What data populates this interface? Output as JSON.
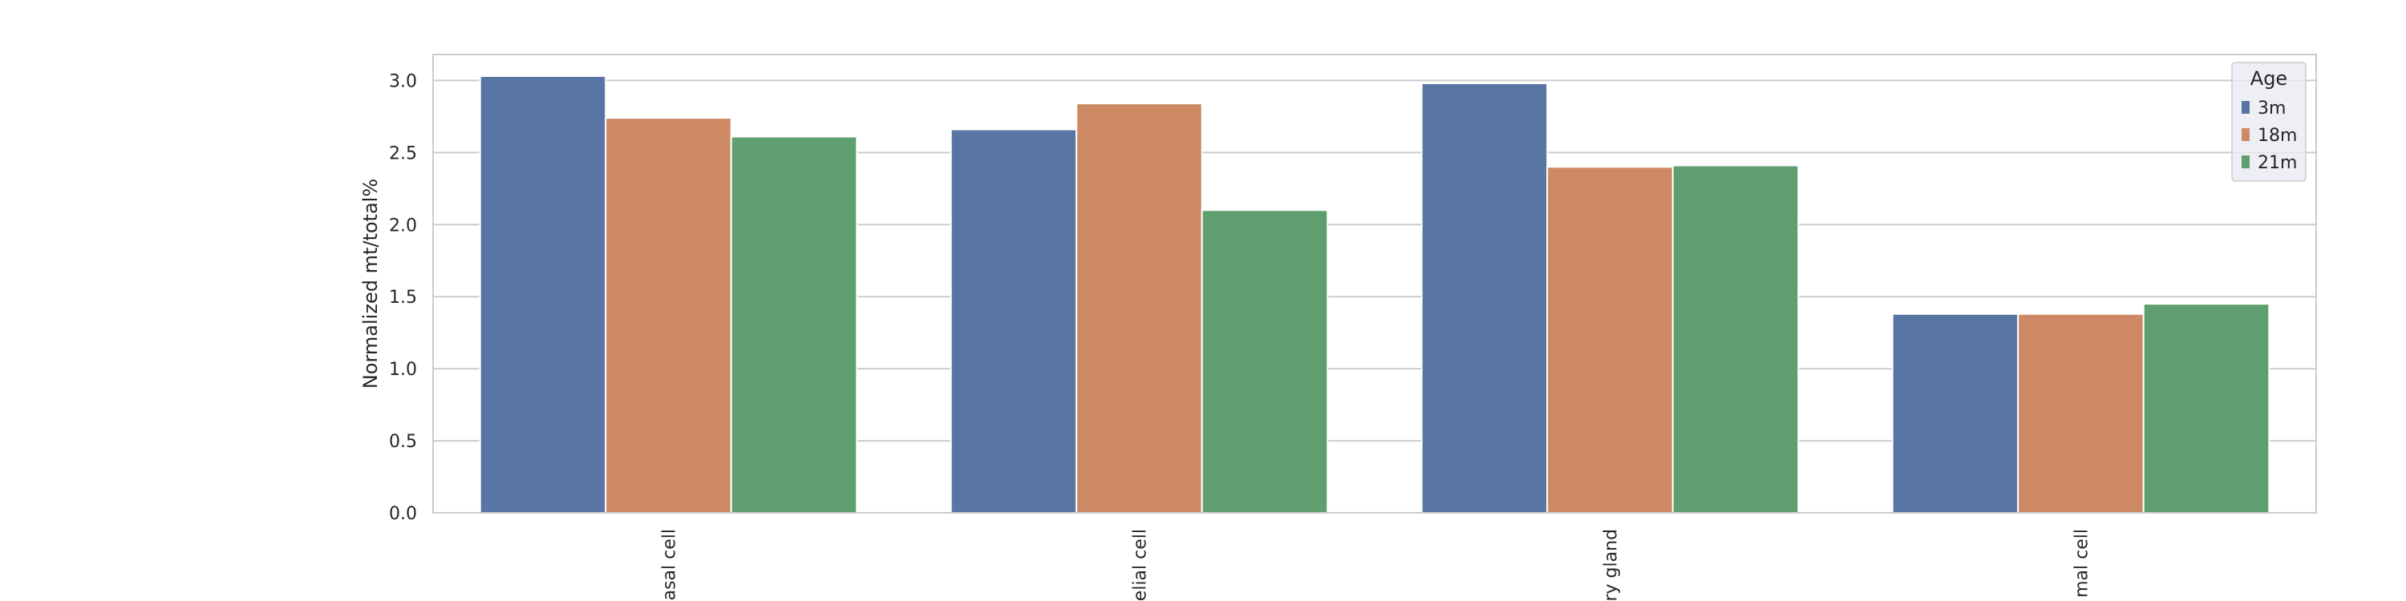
{
  "chart_data": {
    "type": "bar",
    "title": "",
    "xlabel": "",
    "ylabel": "Normalized mt/total%",
    "ylim": [
      0,
      3.18
    ],
    "yticks": [
      "0.0",
      "0.5",
      "1.0",
      "1.5",
      "2.0",
      "2.5",
      "3.0"
    ],
    "categories": [
      "asal cell",
      "elial cell",
      "ry gland",
      "mal cell"
    ],
    "grid": true,
    "legend": {
      "title": "Age",
      "placement": "top-right"
    },
    "series": [
      {
        "name": "3m",
        "color": "#5875a4",
        "values": [
          3.03,
          2.66,
          2.98,
          1.38
        ]
      },
      {
        "name": "18m",
        "color": "#cc8963",
        "values": [
          2.74,
          2.84,
          2.4,
          1.38
        ]
      },
      {
        "name": "21m",
        "color": "#5f9e6e",
        "values": [
          2.61,
          2.1,
          2.41,
          1.45
        ]
      }
    ]
  }
}
